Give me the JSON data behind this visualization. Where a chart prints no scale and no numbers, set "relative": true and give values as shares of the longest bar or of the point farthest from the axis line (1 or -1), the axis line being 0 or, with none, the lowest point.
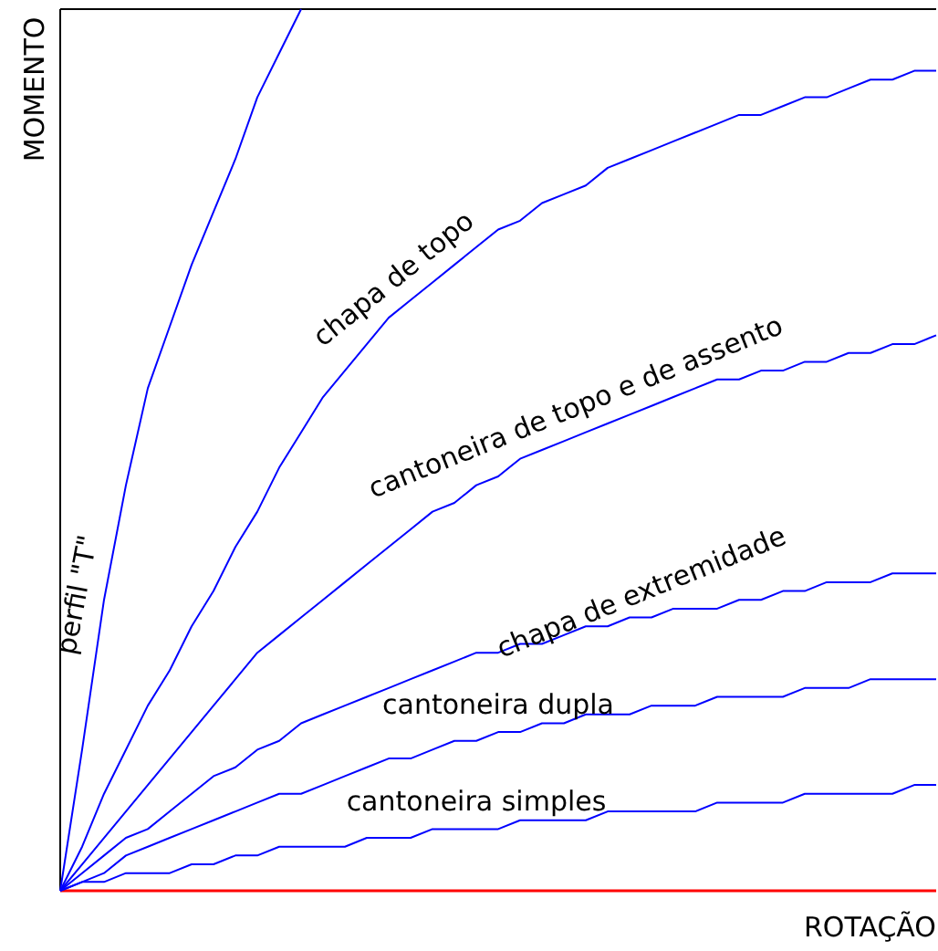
{
  "chart_data": {
    "type": "line",
    "relative": true,
    "xlabel": "ROTAÇÃO",
    "ylabel": "MOMENTO",
    "legend": false,
    "grid": false,
    "marker": "none",
    "line_style": "solid",
    "categories": [
      null,
      null,
      null,
      null,
      null,
      null,
      null,
      null,
      null,
      null,
      null,
      null,
      null,
      null,
      null,
      null,
      null,
      null,
      null,
      null,
      null,
      null,
      null,
      null,
      null,
      null,
      null,
      null,
      null,
      null,
      null,
      null,
      null,
      null,
      null,
      null,
      null,
      null,
      null,
      null,
      null
    ],
    "series": [
      {
        "name": "perfil \"T\"",
        "color": "#0000ff",
        "values": [
          0,
          0.16,
          0.33,
          0.46,
          0.57,
          0.64,
          0.71,
          0.77,
          0.83,
          0.9,
          0.95,
          1,
          null,
          null,
          null,
          null,
          null,
          null,
          null,
          null,
          null,
          null,
          null,
          null,
          null,
          null,
          null,
          null,
          null,
          null,
          null,
          null,
          null,
          null,
          null,
          null,
          null,
          null,
          null,
          null,
          null
        ]
      },
      {
        "name": "chapa de topo",
        "color": "#0000ff",
        "values": [
          0,
          0.05,
          0.11,
          0.16,
          0.21,
          0.25,
          0.3,
          0.34,
          0.39,
          0.43,
          0.48,
          0.52,
          0.56,
          0.59,
          0.62,
          0.65,
          0.67,
          0.69,
          0.71,
          0.73,
          0.75,
          0.76,
          0.78,
          0.79,
          0.8,
          0.82,
          0.83,
          0.84,
          0.85,
          0.86,
          0.87,
          0.88,
          0.88,
          0.89,
          0.9,
          0.9,
          0.91,
          0.92,
          0.92,
          0.93,
          0.93
        ]
      },
      {
        "name": "cantoneira de topo e de assento",
        "color": "#0000ff",
        "values": [
          0,
          0.03,
          0.06,
          0.09,
          0.12,
          0.15,
          0.18,
          0.21,
          0.24,
          0.27,
          0.29,
          0.31,
          0.33,
          0.35,
          0.37,
          0.39,
          0.41,
          0.43,
          0.44,
          0.46,
          0.47,
          0.49,
          0.5,
          0.51,
          0.52,
          0.53,
          0.54,
          0.55,
          0.56,
          0.57,
          0.58,
          0.58,
          0.59,
          0.59,
          0.6,
          0.6,
          0.61,
          0.61,
          0.62,
          0.62,
          0.63
        ]
      },
      {
        "name": "chapa de extremidade",
        "color": "#0000ff",
        "values": [
          0,
          0.02,
          0.04,
          0.06,
          0.07,
          0.09,
          0.11,
          0.13,
          0.14,
          0.16,
          0.17,
          0.19,
          0.2,
          0.21,
          0.22,
          0.23,
          0.24,
          0.25,
          0.26,
          0.27,
          0.27,
          0.28,
          0.28,
          0.29,
          0.3,
          0.3,
          0.31,
          0.31,
          0.32,
          0.32,
          0.32,
          0.33,
          0.33,
          0.34,
          0.34,
          0.35,
          0.35,
          0.35,
          0.36,
          0.36,
          0.36
        ]
      },
      {
        "name": "cantoneira dupla",
        "color": "#0000ff",
        "values": [
          0,
          0.01,
          0.02,
          0.04,
          0.05,
          0.06,
          0.07,
          0.08,
          0.09,
          0.1,
          0.11,
          0.11,
          0.12,
          0.13,
          0.14,
          0.15,
          0.15,
          0.16,
          0.17,
          0.17,
          0.18,
          0.18,
          0.19,
          0.19,
          0.2,
          0.2,
          0.2,
          0.21,
          0.21,
          0.21,
          0.22,
          0.22,
          0.22,
          0.22,
          0.23,
          0.23,
          0.23,
          0.24,
          0.24,
          0.24,
          0.24
        ]
      },
      {
        "name": "cantoneira simples",
        "color": "#0000ff",
        "values": [
          0,
          0.01,
          0.01,
          0.02,
          0.02,
          0.02,
          0.03,
          0.03,
          0.04,
          0.04,
          0.05,
          0.05,
          0.05,
          0.05,
          0.06,
          0.06,
          0.06,
          0.07,
          0.07,
          0.07,
          0.07,
          0.08,
          0.08,
          0.08,
          0.08,
          0.09,
          0.09,
          0.09,
          0.09,
          0.09,
          0.1,
          0.1,
          0.1,
          0.1,
          0.11,
          0.11,
          0.11,
          0.11,
          0.11,
          0.12,
          0.12
        ]
      }
    ]
  }
}
